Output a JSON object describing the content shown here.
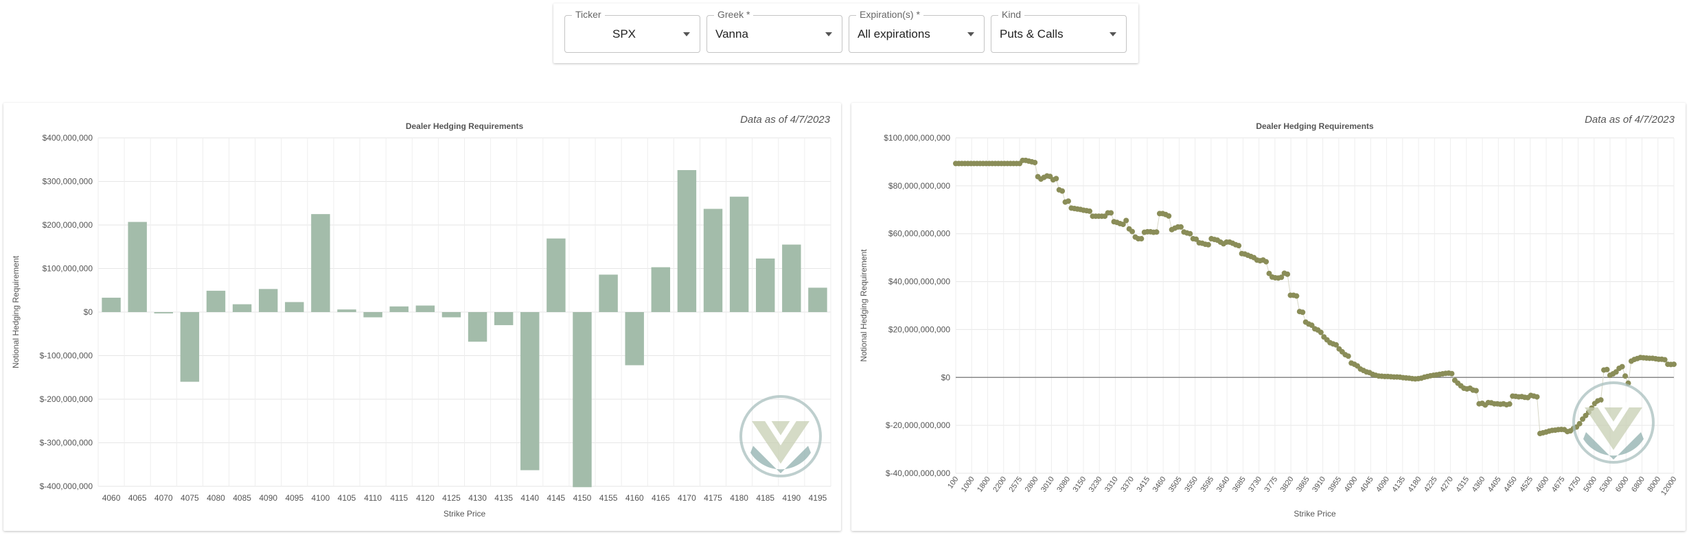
{
  "toolbar": {
    "ticker": {
      "label": "Ticker",
      "value": "SPX"
    },
    "greek": {
      "label": "Greek *",
      "value": "Vanna"
    },
    "expirations": {
      "label": "Expiration(s) *",
      "value": "All expirations"
    },
    "kind": {
      "label": "Kind",
      "value": "Puts & Calls"
    }
  },
  "chart_data": [
    {
      "type": "bar",
      "title": "Dealer Hedging Requirements",
      "annotation": "Data as of 4/7/2023",
      "xlabel": "Strike Price",
      "ylabel": "Notional Hedging Requirement",
      "ylim": [
        -400000000,
        400000000
      ],
      "yticks": [
        "$400,000,000",
        "$300,000,000",
        "$200,000,000",
        "$100,000,000",
        "$0",
        "$-100,000,000",
        "$-200,000,000",
        "$-300,000,000",
        "$-400,000,000"
      ],
      "grid": true,
      "bar_color": "#a3bcaa",
      "categories": [
        "4060",
        "4065",
        "4070",
        "4075",
        "4080",
        "4085",
        "4090",
        "4095",
        "4100",
        "4105",
        "4110",
        "4115",
        "4120",
        "4125",
        "4130",
        "4135",
        "4140",
        "4145",
        "4150",
        "4155",
        "4160",
        "4165",
        "4170",
        "4175",
        "4180",
        "4185",
        "4190",
        "4195"
      ],
      "values": [
        33000000,
        207000000,
        -3000000,
        -160000000,
        49000000,
        18000000,
        53000000,
        23000000,
        225000000,
        6000000,
        -12000000,
        13000000,
        15000000,
        -12000000,
        -68000000,
        -30000000,
        -363000000,
        169000000,
        -402000000,
        86000000,
        -122000000,
        103000000,
        326000000,
        237000000,
        265000000,
        123000000,
        155000000,
        56000000
      ]
    },
    {
      "type": "scatter",
      "title": "Dealer Hedging Requirements",
      "annotation": "Data as of 4/7/2023",
      "xlabel": "Strike Price",
      "ylabel": "Notional Hedging Requirement",
      "ylim": [
        -40000000000,
        100000000000
      ],
      "yticks": [
        "$100,000,000,000",
        "$80,000,000,000",
        "$60,000,000,000",
        "$40,000,000,000",
        "$20,000,000,000",
        "$0",
        "$-20,000,000,000",
        "$-40,000,000,000"
      ],
      "grid": true,
      "point_color": "#8a8d58",
      "xticks": [
        "100",
        "1000",
        "1800",
        "2200",
        "2575",
        "2800",
        "3010",
        "3080",
        "3150",
        "3230",
        "3310",
        "3370",
        "3415",
        "3460",
        "3505",
        "3550",
        "3595",
        "3640",
        "3685",
        "3730",
        "3775",
        "3820",
        "3865",
        "3910",
        "3955",
        "4000",
        "4045",
        "4090",
        "4135",
        "4180",
        "4225",
        "4270",
        "4315",
        "4360",
        "4405",
        "4450",
        "4525",
        "4600",
        "4675",
        "4750",
        "5000",
        "5300",
        "6000",
        "6800",
        "8000",
        "12000"
      ],
      "values": [
        89.3,
        89.3,
        89.3,
        89.3,
        89.3,
        89.3,
        89.3,
        89.3,
        89.3,
        89.3,
        89.3,
        89.3,
        89.3,
        89.3,
        89.3,
        89.3,
        89.3,
        89.3,
        89.3,
        89.3,
        89.3,
        89.3,
        90.6,
        90.6,
        90.3,
        90.0,
        89.7,
        83.8,
        82.8,
        83.5,
        84.1,
        83.9,
        82.5,
        83.0,
        78.3,
        77.8,
        73.2,
        73.6,
        70.7,
        70.5,
        70.3,
        70.1,
        69.8,
        69.6,
        69.4,
        67.3,
        67.3,
        67.3,
        67.3,
        67.3,
        68.7,
        68.7,
        65.0,
        64.7,
        64.2,
        63.9,
        65.5,
        62.0,
        60.9,
        58.6,
        57.9,
        57.9,
        60.6,
        60.8,
        60.8,
        60.6,
        60.7,
        68.4,
        68.4,
        68.0,
        67.4,
        61.7,
        62.3,
        62.8,
        62.8,
        60.7,
        60.3,
        60.0,
        57.9,
        57.7,
        56.2,
        56.0,
        55.6,
        55.4,
        57.9,
        57.6,
        57.3,
        56.5,
        55.8,
        56.5,
        56.5,
        56.0,
        55.4,
        55.0,
        51.7,
        51.5,
        51.0,
        50.5,
        50.0,
        49.0,
        48.7,
        49.0,
        48.3,
        43.4,
        41.9,
        41.6,
        41.5,
        41.8,
        43.5,
        43.1,
        34.3,
        34.3,
        34.0,
        27.5,
        27.2,
        23.1,
        22.3,
        21.8,
        20.3,
        19.8,
        18.8,
        16.9,
        15.7,
        14.5,
        14.0,
        13.6,
        11.9,
        10.7,
        9.5,
        8.9,
        6.0,
        5.5,
        4.8,
        3.5,
        2.9,
        2.3,
        2.0,
        1.3,
        0.9,
        0.6,
        0.5,
        0.4,
        0.4,
        0.3,
        0.2,
        0.2,
        0.1,
        -0.1,
        -0.2,
        -0.3,
        -0.5,
        -0.6,
        -0.5,
        -0.3,
        0.1,
        0.4,
        0.7,
        0.9,
        1.1,
        1.3,
        1.5,
        1.7,
        1.8,
        1.6,
        -1.2,
        -2.4,
        -3.5,
        -4.5,
        -4.8,
        -4.5,
        -5.3,
        -5.5,
        -11.0,
        -10.8,
        -11.5,
        -10.5,
        -10.6,
        -11.0,
        -11.0,
        -11.2,
        -11.0,
        -11.4,
        -11.1,
        -7.8,
        -7.9,
        -8.1,
        -8.0,
        -8.3,
        -8.4,
        -7.5,
        -7.8,
        -8.1,
        -23.4,
        -23.1,
        -22.8,
        -22.4,
        -22.1,
        -22.0,
        -21.8,
        -21.7,
        -21.8,
        -22.6,
        -22.3,
        -21.3,
        -20.7,
        -19.3,
        -17.4,
        -15.9,
        -14.5,
        -12.8,
        -10.9,
        -9.8,
        -9.4,
        3.1,
        3.3,
        0.9,
        1.5,
        2.3,
        3.8,
        4.5,
        0.6,
        -2.4,
        6.8,
        7.5,
        7.9,
        8.3,
        8.2,
        8.1,
        8.0,
        8.0,
        7.8,
        7.6,
        7.6,
        7.4,
        5.5,
        5.4,
        5.5
      ]
    }
  ]
}
